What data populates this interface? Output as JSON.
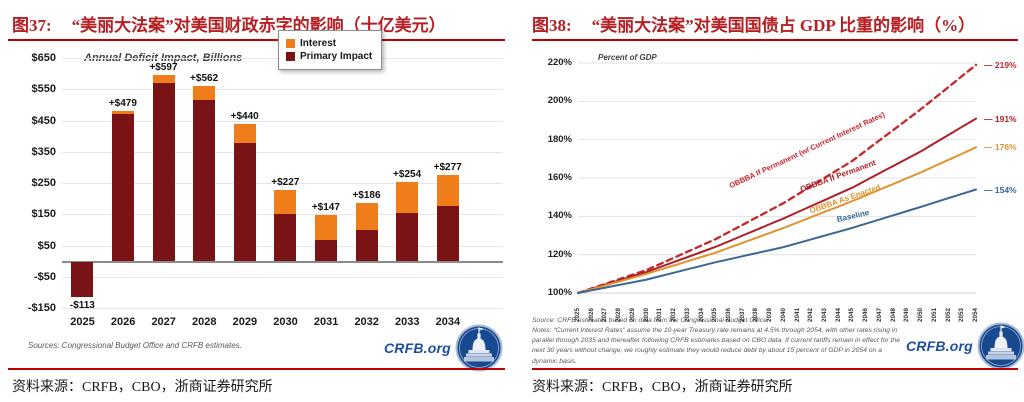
{
  "figure37": {
    "title_prefix": "图37:",
    "title": "“美丽大法案”对美国财政赤字的影响（十亿美元）",
    "caption": "资料来源：CRFB，CBO，浙商证券研究所",
    "inner_title": "Annual Deficit Impact, Billions",
    "source_note": "Sources: Congressional Budget Office and CRFB estimates.",
    "logo_text": "CRFB.org"
  },
  "figure38": {
    "title_prefix": "图38:",
    "title": "“美丽大法案”对美国国债占 GDP 比重的影响（%）",
    "caption": "资料来源：CRFB，CBO，浙商证券研究所",
    "inner_title": "Percent of GDP",
    "source_note": "Source: CRFB estimates based on data from the Congressional Budget Office.",
    "notes": "Notes: “Current Interest Rates” assume the 10-year Treasury rate remains at 4.5% through 2054, with other rates rising in parallel through 2035 and thereafter following CRFB estimates based on CBO data. If current tariffs remain in effect for the next 30 years without change, we roughly estimate they would reduce debt by about 15 percent of GDP in 2054 on a dynamic basis.",
    "logo_text": "CRFB.org"
  },
  "chart_data": [
    {
      "type": "bar",
      "title": "Annual Deficit Impact, Billions",
      "categories": [
        "2025",
        "2026",
        "2027",
        "2028",
        "2029",
        "2030",
        "2031",
        "2032",
        "2033",
        "2034"
      ],
      "series": [
        {
          "name": "Primary Impact",
          "color": "#7a1315",
          "values": [
            -113,
            471,
            570,
            515,
            378,
            150,
            68,
            100,
            155,
            175
          ]
        },
        {
          "name": "Interest",
          "color": "#ef7d1a",
          "values": [
            0,
            8,
            27,
            47,
            62,
            77,
            79,
            86,
            99,
            102
          ]
        }
      ],
      "totals": [
        -113,
        479,
        597,
        562,
        440,
        227,
        147,
        186,
        254,
        277
      ],
      "total_labels": [
        "-$113",
        "+$479",
        "+$597",
        "+$562",
        "+$440",
        "+$227",
        "+$147",
        "+$186",
        "+$254",
        "+$277"
      ],
      "ylim": [
        -150,
        650
      ],
      "y_ticks": [
        "$650",
        "$550",
        "$450",
        "$350",
        "$250",
        "$150",
        "$50",
        "-$50",
        "-$150"
      ],
      "y_tick_values": [
        650,
        550,
        450,
        350,
        250,
        150,
        50,
        -50,
        -150
      ],
      "legend": [
        "Interest",
        "Primary Impact"
      ],
      "legend_position": "top-right",
      "grid": true
    },
    {
      "type": "line",
      "title": "Percent of GDP",
      "x_start": 2025,
      "x_end": 2054,
      "ylim": [
        100,
        220
      ],
      "y_ticks": [
        "220%",
        "200%",
        "180%",
        "160%",
        "140%",
        "120%",
        "100%"
      ],
      "y_tick_values": [
        220,
        200,
        180,
        160,
        140,
        120,
        100
      ],
      "grid": true,
      "legend_position": "inline-labels",
      "series": [
        {
          "name": "OBBBA If Permanent (w/ Current Interest Rates)",
          "style": "dashed",
          "color": "#c4262c",
          "end_label": "219%",
          "anchor_years": [
            2025,
            2030,
            2035,
            2040,
            2045,
            2050,
            2054
          ],
          "anchor_values": [
            100,
            112,
            128,
            147,
            169,
            196,
            219
          ]
        },
        {
          "name": "OBBBA If Permanent",
          "style": "solid",
          "color": "#ae2029",
          "end_label": "191%",
          "anchor_years": [
            2025,
            2030,
            2035,
            2040,
            2045,
            2050,
            2054
          ],
          "anchor_values": [
            100,
            111,
            124,
            139,
            155,
            174,
            191
          ]
        },
        {
          "name": "OBBBA As Enacted",
          "style": "solid",
          "color": "#e0922f",
          "end_label": "176%",
          "anchor_years": [
            2025,
            2030,
            2035,
            2040,
            2045,
            2050,
            2054
          ],
          "anchor_values": [
            100,
            110,
            121,
            134,
            148,
            163,
            176
          ]
        },
        {
          "name": "Baseline",
          "style": "solid",
          "color": "#3a6795",
          "end_label": "154%",
          "anchor_years": [
            2025,
            2030,
            2035,
            2040,
            2045,
            2050,
            2054
          ],
          "anchor_values": [
            100,
            107,
            116,
            124,
            134,
            145,
            154
          ]
        }
      ]
    }
  ]
}
